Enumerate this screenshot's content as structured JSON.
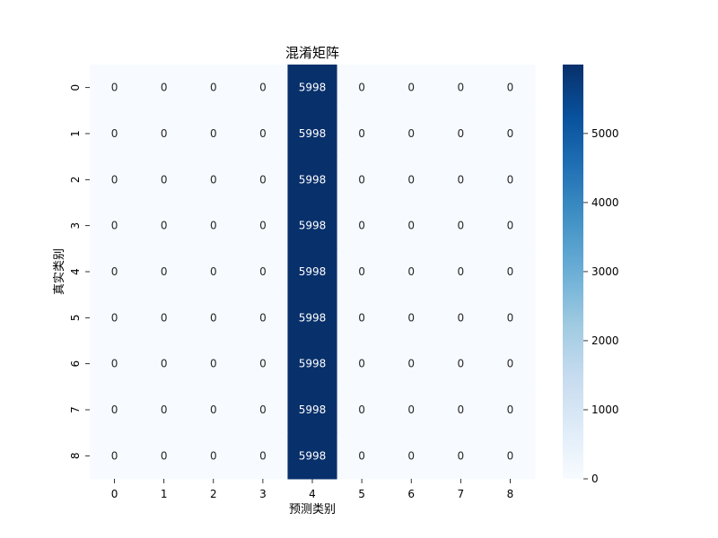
{
  "chart_data": {
    "type": "heatmap",
    "title": "混淆矩阵",
    "xlabel": "预测类别",
    "ylabel": "真实类别",
    "x_categories": [
      "0",
      "1",
      "2",
      "3",
      "4",
      "5",
      "6",
      "7",
      "8"
    ],
    "y_categories": [
      "0",
      "1",
      "2",
      "3",
      "4",
      "5",
      "6",
      "7",
      "8"
    ],
    "values": [
      [
        0,
        0,
        0,
        0,
        5998,
        0,
        0,
        0,
        0
      ],
      [
        0,
        0,
        0,
        0,
        5998,
        0,
        0,
        0,
        0
      ],
      [
        0,
        0,
        0,
        0,
        5998,
        0,
        0,
        0,
        0
      ],
      [
        0,
        0,
        0,
        0,
        5998,
        0,
        0,
        0,
        0
      ],
      [
        0,
        0,
        0,
        0,
        5998,
        0,
        0,
        0,
        0
      ],
      [
        0,
        0,
        0,
        0,
        5998,
        0,
        0,
        0,
        0
      ],
      [
        0,
        0,
        0,
        0,
        5998,
        0,
        0,
        0,
        0
      ],
      [
        0,
        0,
        0,
        0,
        5998,
        0,
        0,
        0,
        0
      ],
      [
        0,
        0,
        0,
        0,
        5998,
        0,
        0,
        0,
        0
      ]
    ],
    "colorbar": {
      "range": [
        0,
        5998
      ],
      "ticks": [
        0,
        1000,
        2000,
        3000,
        4000,
        5000
      ],
      "colormap": "Blues",
      "low_color": "#f7fbff",
      "high_color": "#08306b"
    },
    "annotated": true,
    "grid": false
  }
}
